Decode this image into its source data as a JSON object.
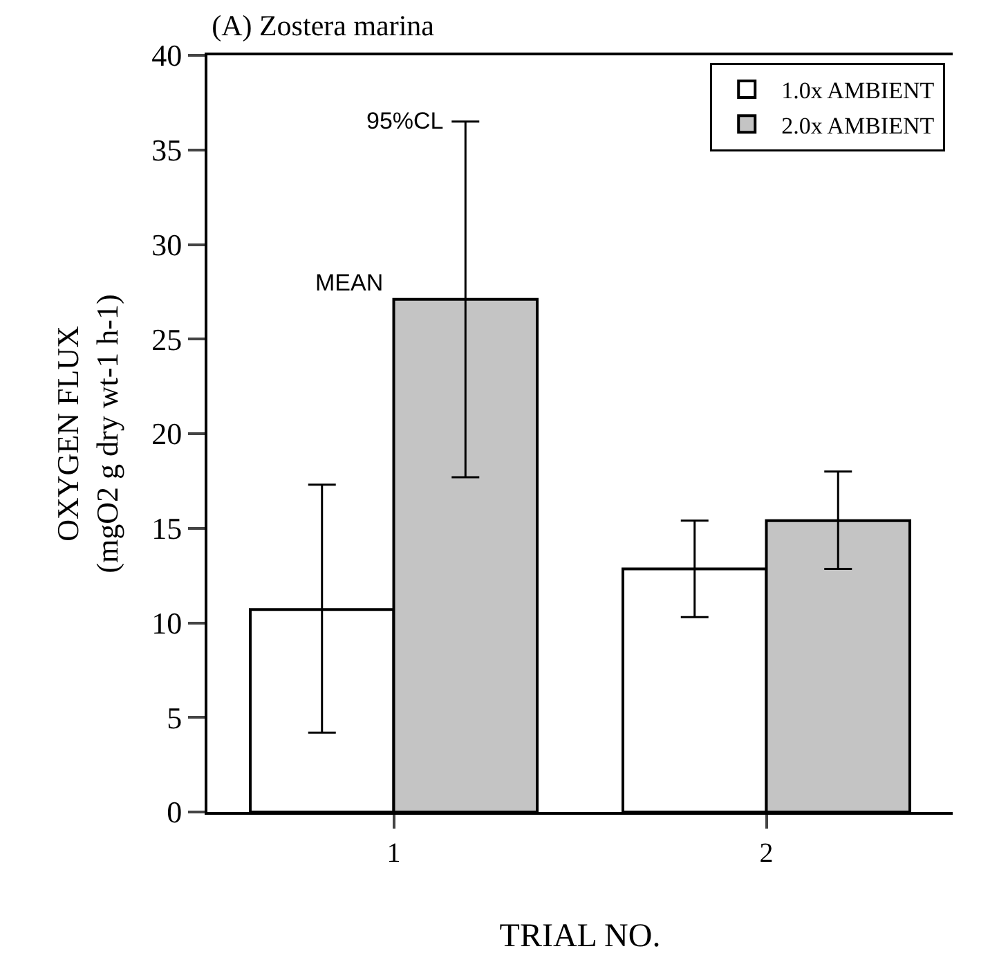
{
  "chart_data": {
    "type": "bar",
    "title": "(A) Zostera marina",
    "xlabel": "TRIAL NO.",
    "ylabel": "OXYGEN FLUX\n(mgO2 g dry wt-1 h-1)",
    "categories": [
      "1",
      "2"
    ],
    "series": [
      {
        "name": "1.0x AMBIENT",
        "color": "#ffffff",
        "values": [
          10.7,
          12.85
        ],
        "errors": [
          [
            4.2,
            17.3
          ],
          [
            10.3,
            15.4
          ]
        ]
      },
      {
        "name": "2.0x AMBIENT",
        "color": "#c4c4c4",
        "values": [
          27.1,
          15.4
        ],
        "errors": [
          [
            17.7,
            36.5
          ],
          [
            12.85,
            18.0
          ]
        ]
      }
    ],
    "annotations": [
      {
        "text": "MEAN",
        "x": "1",
        "y": 27.1
      },
      "95%CL"
    ],
    "ylim": [
      0,
      40
    ],
    "yticks": [
      0,
      5,
      10,
      15,
      20,
      25,
      30,
      35,
      40
    ],
    "legend": "top right"
  }
}
